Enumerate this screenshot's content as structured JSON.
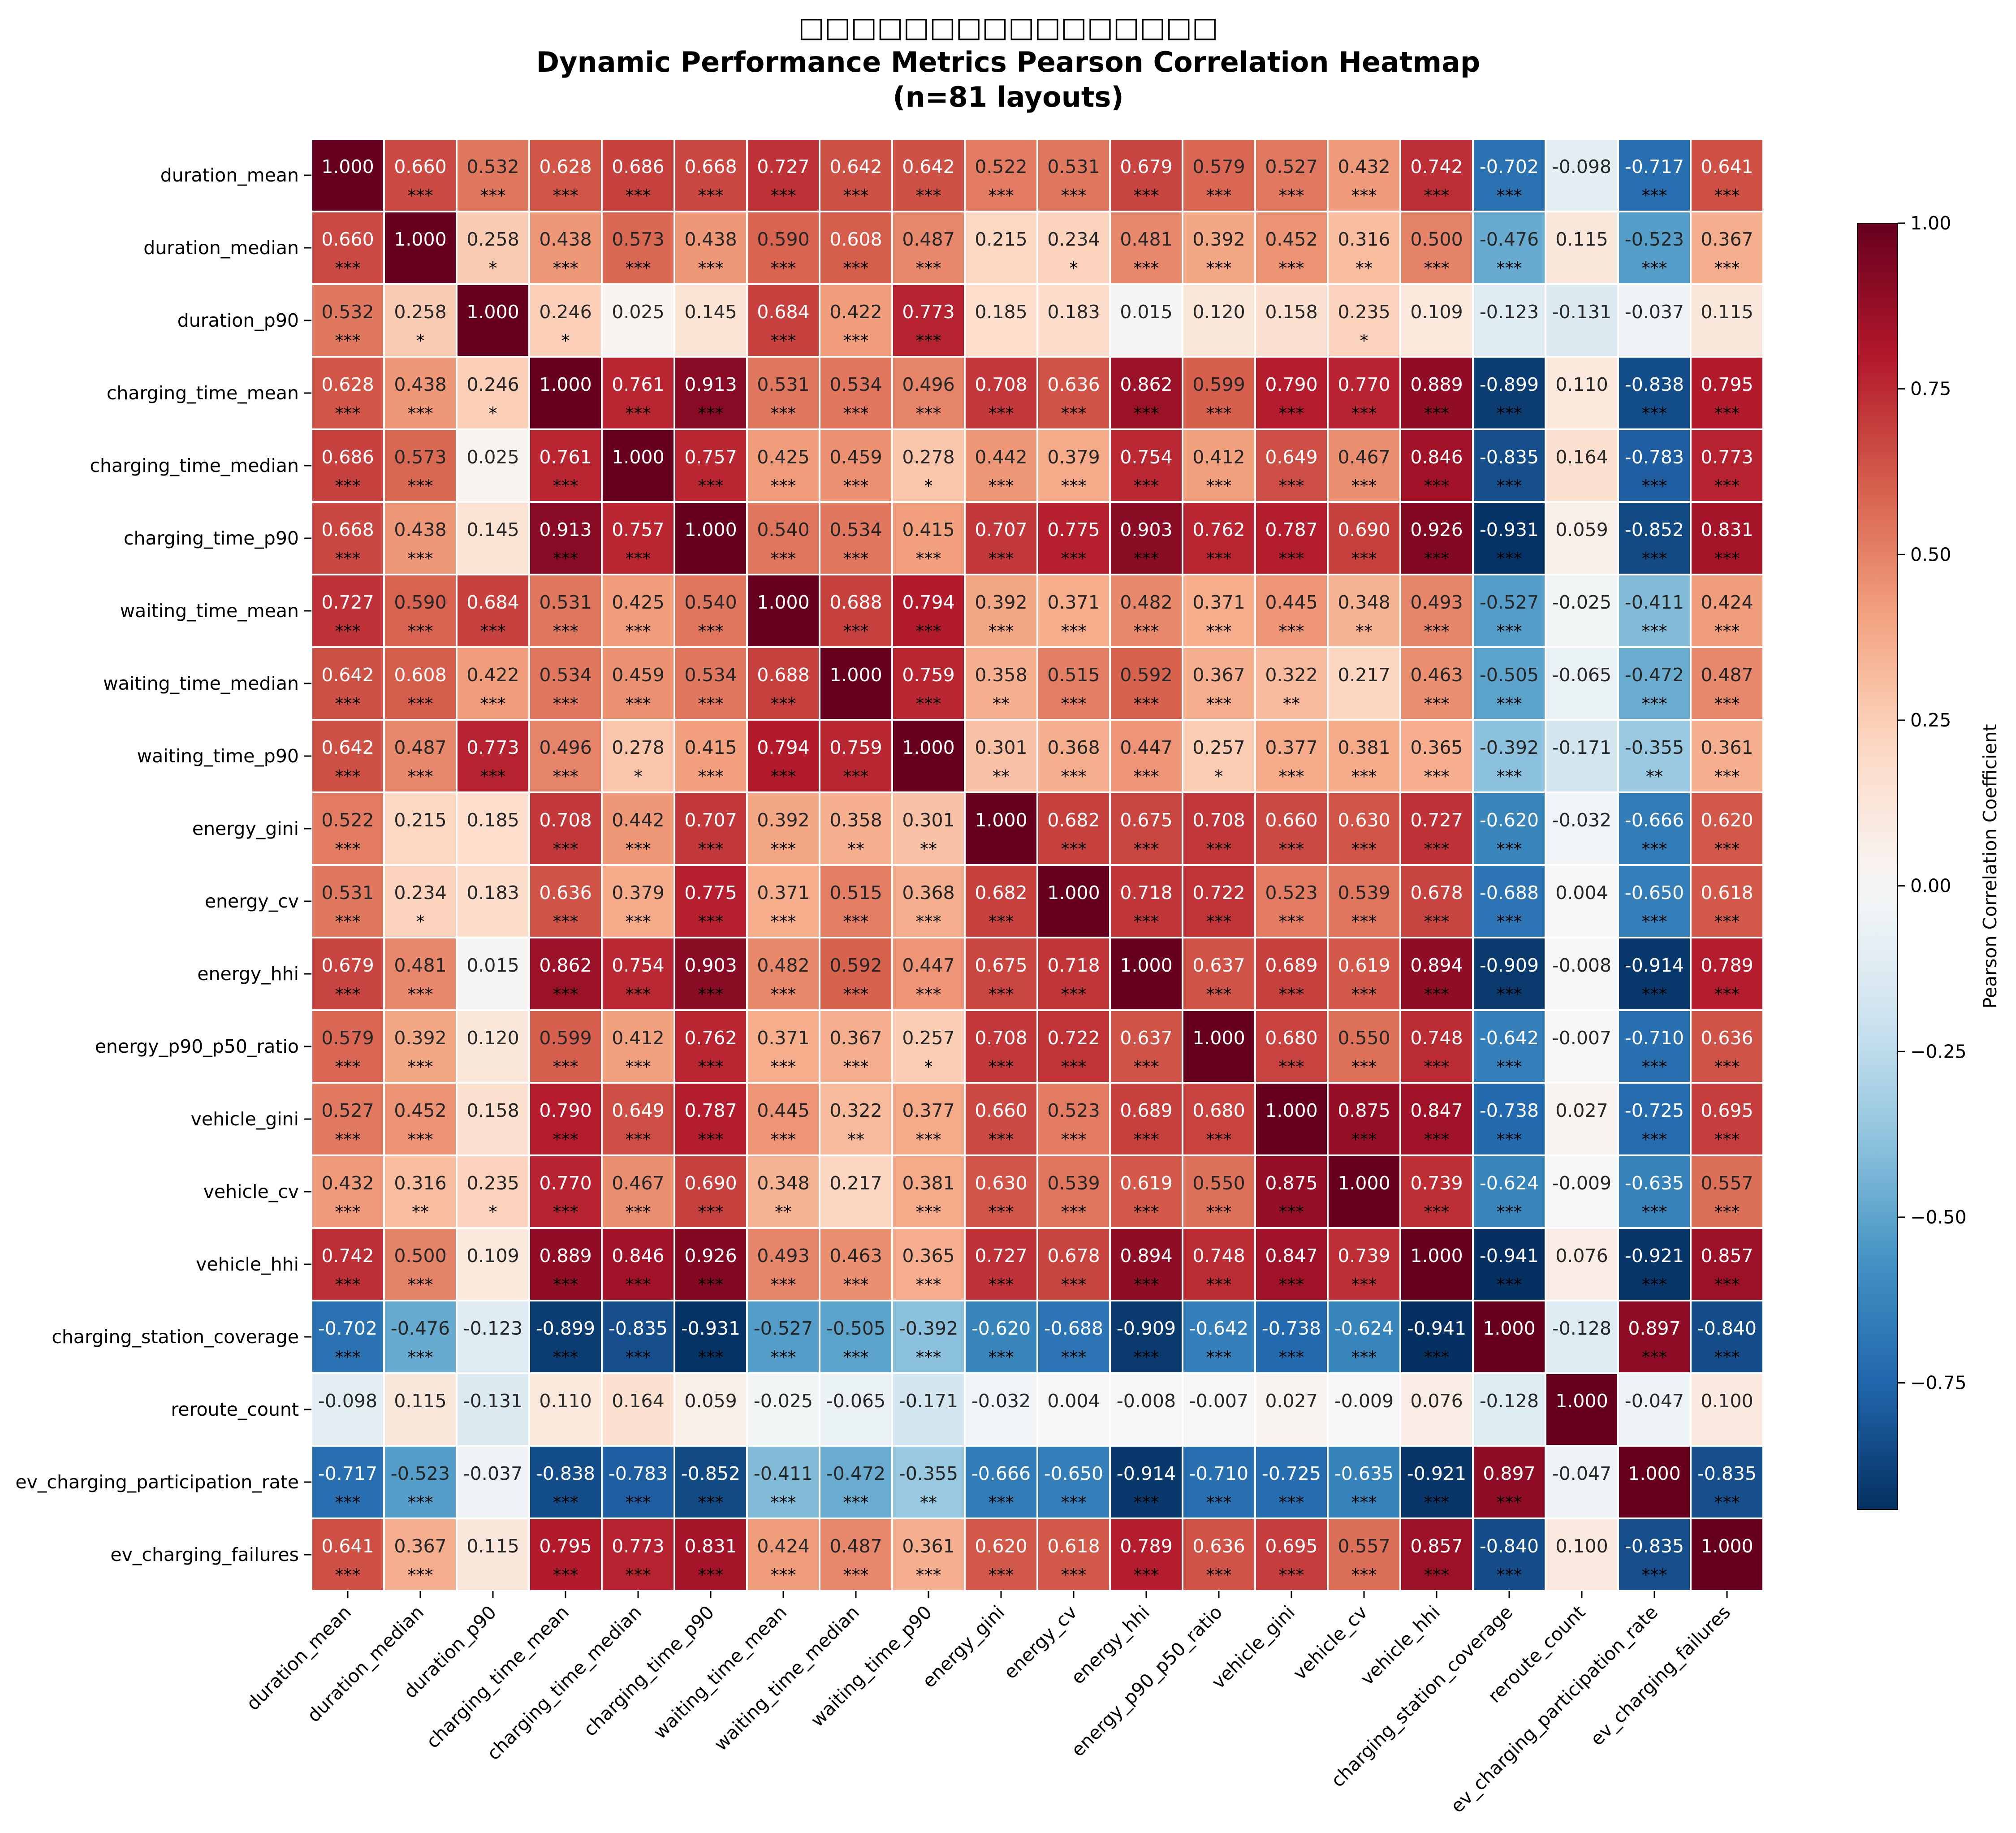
{
  "chart_data": {
    "type": "heatmap",
    "title_lines": [
      "□□□□□□□□□□□□□□□□",
      "Dynamic Performance Metrics Pearson Correlation Heatmap",
      "(n=81 layouts)"
    ],
    "labels": [
      "duration_mean",
      "duration_median",
      "duration_p90",
      "charging_time_mean",
      "charging_time_median",
      "charging_time_p90",
      "waiting_time_mean",
      "waiting_time_median",
      "waiting_time_p90",
      "energy_gini",
      "energy_cv",
      "energy_hhi",
      "energy_p90_p50_ratio",
      "vehicle_gini",
      "vehicle_cv",
      "vehicle_hhi",
      "charging_station_coverage",
      "reroute_count",
      "ev_charging_participation_rate",
      "ev_charging_failures"
    ],
    "matrix": [
      [
        1.0,
        0.66,
        0.532,
        0.628,
        0.686,
        0.668,
        0.727,
        0.642,
        0.642,
        0.522,
        0.531,
        0.679,
        0.579,
        0.527,
        0.432,
        0.742,
        -0.702,
        -0.098,
        -0.717,
        0.641
      ],
      [
        0.66,
        1.0,
        0.258,
        0.438,
        0.573,
        0.438,
        0.59,
        0.608,
        0.487,
        0.215,
        0.234,
        0.481,
        0.392,
        0.452,
        0.316,
        0.5,
        -0.476,
        0.115,
        -0.523,
        0.367
      ],
      [
        0.532,
        0.258,
        1.0,
        0.246,
        0.025,
        0.145,
        0.684,
        0.422,
        0.773,
        0.185,
        0.183,
        0.015,
        0.12,
        0.158,
        0.235,
        0.109,
        -0.123,
        -0.131,
        -0.037,
        0.115
      ],
      [
        0.628,
        0.438,
        0.246,
        1.0,
        0.761,
        0.913,
        0.531,
        0.534,
        0.496,
        0.708,
        0.636,
        0.862,
        0.599,
        0.79,
        0.77,
        0.889,
        -0.899,
        0.11,
        -0.838,
        0.795
      ],
      [
        0.686,
        0.573,
        0.025,
        0.761,
        1.0,
        0.757,
        0.425,
        0.459,
        0.278,
        0.442,
        0.379,
        0.754,
        0.412,
        0.649,
        0.467,
        0.846,
        -0.835,
        0.164,
        -0.783,
        0.773
      ],
      [
        0.668,
        0.438,
        0.145,
        0.913,
        0.757,
        1.0,
        0.54,
        0.534,
        0.415,
        0.707,
        0.775,
        0.903,
        0.762,
        0.787,
        0.69,
        0.926,
        -0.931,
        0.059,
        -0.852,
        0.831
      ],
      [
        0.727,
        0.59,
        0.684,
        0.531,
        0.425,
        0.54,
        1.0,
        0.688,
        0.794,
        0.392,
        0.371,
        0.482,
        0.371,
        0.445,
        0.348,
        0.493,
        -0.527,
        -0.025,
        -0.411,
        0.424
      ],
      [
        0.642,
        0.608,
        0.422,
        0.534,
        0.459,
        0.534,
        0.688,
        1.0,
        0.759,
        0.358,
        0.515,
        0.592,
        0.367,
        0.322,
        0.217,
        0.463,
        -0.505,
        -0.065,
        -0.472,
        0.487
      ],
      [
        0.642,
        0.487,
        0.773,
        0.496,
        0.278,
        0.415,
        0.794,
        0.759,
        1.0,
        0.301,
        0.368,
        0.447,
        0.257,
        0.377,
        0.381,
        0.365,
        -0.392,
        -0.171,
        -0.355,
        0.361
      ],
      [
        0.522,
        0.215,
        0.185,
        0.708,
        0.442,
        0.707,
        0.392,
        0.358,
        0.301,
        1.0,
        0.682,
        0.675,
        0.708,
        0.66,
        0.63,
        0.727,
        -0.62,
        -0.032,
        -0.666,
        0.62
      ],
      [
        0.531,
        0.234,
        0.183,
        0.636,
        0.379,
        0.775,
        0.371,
        0.515,
        0.368,
        0.682,
        1.0,
        0.718,
        0.722,
        0.523,
        0.539,
        0.678,
        -0.688,
        0.004,
        -0.65,
        0.618
      ],
      [
        0.679,
        0.481,
        0.015,
        0.862,
        0.754,
        0.903,
        0.482,
        0.592,
        0.447,
        0.675,
        0.718,
        1.0,
        0.637,
        0.689,
        0.619,
        0.894,
        -0.909,
        -0.008,
        -0.914,
        0.789
      ],
      [
        0.579,
        0.392,
        0.12,
        0.599,
        0.412,
        0.762,
        0.371,
        0.367,
        0.257,
        0.708,
        0.722,
        0.637,
        1.0,
        0.68,
        0.55,
        0.748,
        -0.642,
        -0.007,
        -0.71,
        0.636
      ],
      [
        0.527,
        0.452,
        0.158,
        0.79,
        0.649,
        0.787,
        0.445,
        0.322,
        0.377,
        0.66,
        0.523,
        0.689,
        0.68,
        1.0,
        0.875,
        0.847,
        -0.738,
        0.027,
        -0.725,
        0.695
      ],
      [
        0.432,
        0.316,
        0.235,
        0.77,
        0.467,
        0.69,
        0.348,
        0.217,
        0.381,
        0.63,
        0.539,
        0.619,
        0.55,
        0.875,
        1.0,
        0.739,
        -0.624,
        -0.009,
        -0.635,
        0.557
      ],
      [
        0.742,
        0.5,
        0.109,
        0.889,
        0.846,
        0.926,
        0.493,
        0.463,
        0.365,
        0.727,
        0.678,
        0.894,
        0.748,
        0.847,
        0.739,
        1.0,
        -0.941,
        0.076,
        -0.921,
        0.857
      ],
      [
        -0.702,
        -0.476,
        -0.123,
        -0.899,
        -0.835,
        -0.931,
        -0.527,
        -0.505,
        -0.392,
        -0.62,
        -0.688,
        -0.909,
        -0.642,
        -0.738,
        -0.624,
        -0.941,
        1.0,
        -0.128,
        0.897,
        -0.84
      ],
      [
        -0.098,
        0.115,
        -0.131,
        0.11,
        0.164,
        0.059,
        -0.025,
        -0.065,
        -0.171,
        -0.032,
        0.004,
        -0.008,
        -0.007,
        0.027,
        -0.009,
        0.076,
        -0.128,
        1.0,
        -0.047,
        0.1
      ],
      [
        -0.717,
        -0.523,
        -0.037,
        -0.838,
        -0.783,
        -0.852,
        -0.411,
        -0.472,
        -0.355,
        -0.666,
        -0.65,
        -0.914,
        -0.71,
        -0.725,
        -0.635,
        -0.921,
        0.897,
        -0.047,
        1.0,
        -0.835
      ],
      [
        0.641,
        0.367,
        0.115,
        0.795,
        0.773,
        0.831,
        0.424,
        0.487,
        0.361,
        0.62,
        0.618,
        0.789,
        0.636,
        0.695,
        0.557,
        0.857,
        -0.84,
        0.1,
        -0.835,
        1.0
      ]
    ],
    "significance": [
      [
        "",
        "***",
        "***",
        "***",
        "***",
        "***",
        "***",
        "***",
        "***",
        "***",
        "***",
        "***",
        "***",
        "***",
        "***",
        "***",
        "***",
        "",
        "***",
        "***"
      ],
      [
        "***",
        "",
        "*",
        "***",
        "***",
        "***",
        "***",
        "***",
        "***",
        "",
        "*",
        "***",
        "***",
        "***",
        "**",
        "***",
        "***",
        "",
        "***",
        "***"
      ],
      [
        "***",
        "*",
        "",
        "*",
        "",
        "",
        "***",
        "***",
        "***",
        "",
        "",
        "",
        "",
        "",
        "*",
        "",
        "",
        "",
        "",
        ""
      ],
      [
        "***",
        "***",
        "*",
        "",
        "***",
        "***",
        "***",
        "***",
        "***",
        "***",
        "***",
        "***",
        "***",
        "***",
        "***",
        "***",
        "***",
        "",
        "***",
        "***"
      ],
      [
        "***",
        "***",
        "",
        "***",
        "",
        "***",
        "***",
        "***",
        "*",
        "***",
        "***",
        "***",
        "***",
        "***",
        "***",
        "***",
        "***",
        "",
        "***",
        "***"
      ],
      [
        "***",
        "***",
        "",
        "***",
        "***",
        "",
        "***",
        "***",
        "***",
        "***",
        "***",
        "***",
        "***",
        "***",
        "***",
        "***",
        "***",
        "",
        "***",
        "***"
      ],
      [
        "***",
        "***",
        "***",
        "***",
        "***",
        "***",
        "",
        "***",
        "***",
        "***",
        "***",
        "***",
        "***",
        "***",
        "**",
        "***",
        "***",
        "",
        "***",
        "***"
      ],
      [
        "***",
        "***",
        "***",
        "***",
        "***",
        "***",
        "***",
        "",
        "***",
        "**",
        "***",
        "***",
        "***",
        "**",
        "",
        "***",
        "***",
        "",
        "***",
        "***"
      ],
      [
        "***",
        "***",
        "***",
        "***",
        "*",
        "***",
        "***",
        "***",
        "",
        "**",
        "***",
        "***",
        "*",
        "***",
        "***",
        "***",
        "***",
        "",
        "**",
        "***"
      ],
      [
        "***",
        "",
        "",
        "***",
        "***",
        "***",
        "***",
        "**",
        "**",
        "",
        "***",
        "***",
        "***",
        "***",
        "***",
        "***",
        "***",
        "",
        "***",
        "***"
      ],
      [
        "***",
        "*",
        "",
        "***",
        "***",
        "***",
        "***",
        "***",
        "***",
        "***",
        "",
        "***",
        "***",
        "***",
        "***",
        "***",
        "***",
        "",
        "***",
        "***"
      ],
      [
        "***",
        "***",
        "",
        "***",
        "***",
        "***",
        "***",
        "***",
        "***",
        "***",
        "***",
        "",
        "***",
        "***",
        "***",
        "***",
        "***",
        "",
        "***",
        "***"
      ],
      [
        "***",
        "***",
        "",
        "***",
        "***",
        "***",
        "***",
        "***",
        "*",
        "***",
        "***",
        "***",
        "",
        "***",
        "***",
        "***",
        "***",
        "",
        "***",
        "***"
      ],
      [
        "***",
        "***",
        "",
        "***",
        "***",
        "***",
        "***",
        "**",
        "***",
        "***",
        "***",
        "***",
        "***",
        "",
        "***",
        "***",
        "***",
        "",
        "***",
        "***"
      ],
      [
        "***",
        "**",
        "*",
        "***",
        "***",
        "***",
        "**",
        "",
        "***",
        "***",
        "***",
        "***",
        "***",
        "***",
        "",
        "***",
        "***",
        "",
        "***",
        "***"
      ],
      [
        "***",
        "***",
        "",
        "***",
        "***",
        "***",
        "***",
        "***",
        "***",
        "***",
        "***",
        "***",
        "***",
        "***",
        "***",
        "",
        "***",
        "",
        "***",
        "***"
      ],
      [
        "***",
        "***",
        "",
        "***",
        "***",
        "***",
        "***",
        "***",
        "***",
        "***",
        "***",
        "***",
        "***",
        "***",
        "***",
        "***",
        "",
        "",
        "***",
        "***"
      ],
      [
        "",
        "",
        "",
        "",
        "",
        "",
        "",
        "",
        "",
        "",
        "",
        "",
        "",
        "",
        "",
        "",
        "",
        "",
        "",
        ""
      ],
      [
        "***",
        "***",
        "",
        "***",
        "***",
        "***",
        "***",
        "***",
        "**",
        "***",
        "***",
        "***",
        "***",
        "***",
        "***",
        "***",
        "***",
        "",
        "",
        "***"
      ],
      [
        "***",
        "***",
        "",
        "***",
        "***",
        "***",
        "***",
        "***",
        "***",
        "***",
        "***",
        "***",
        "***",
        "***",
        "***",
        "***",
        "***",
        "",
        "***",
        ""
      ]
    ],
    "colorbar": {
      "label": "Pearson Correlation Coefficient",
      "ticks": [
        1.0,
        0.75,
        0.5,
        0.25,
        0.0,
        -0.25,
        -0.5,
        -0.75
      ],
      "tick_labels": [
        "1.00",
        "0.75",
        "0.50",
        "0.25",
        "0.00",
        "−0.25",
        "−0.50",
        "−0.75"
      ],
      "range": [
        -0.941,
        1.0
      ],
      "colormap": "RdBu_r"
    }
  }
}
